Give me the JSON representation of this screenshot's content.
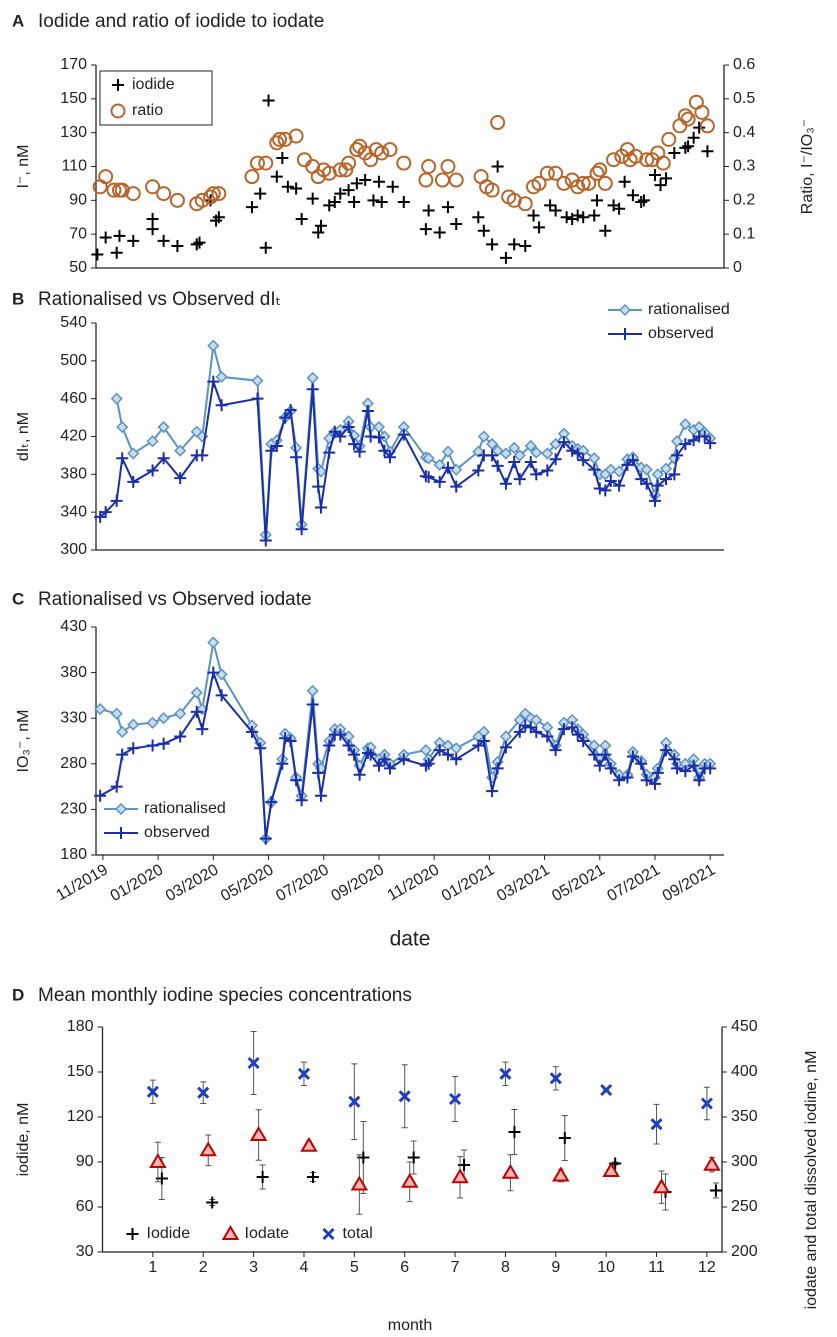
{
  "chart_data": [
    {
      "type": "scatter",
      "panel": "A",
      "title": "Iodide and ratio of iodide to iodate",
      "ylabel": "I⁻, nM",
      "y2label": "Ratio, I⁻/IO₃⁻",
      "xlim": [
        -0.25,
        22.5
      ],
      "ylim": [
        50,
        170
      ],
      "yticks": [
        50,
        70,
        90,
        110,
        130,
        150,
        170
      ],
      "y2lim": [
        0,
        0.6
      ],
      "y2ticks": [
        0,
        0.1,
        0.2,
        0.3,
        0.4,
        0.5,
        0.6
      ],
      "legend": "upper left",
      "series": [
        {
          "name": "iodide",
          "color": "#000000",
          "marker": "plus",
          "x": [
            -0.2,
            0.1,
            0.5,
            0.6,
            1.1,
            1.8,
            1.8,
            2.2,
            2.7,
            3.4,
            3.5,
            3.9,
            4.1,
            4.2,
            5.4,
            5.7,
            5.9,
            6.0,
            6.3,
            6.5,
            6.7,
            7.0,
            7.2,
            7.6,
            7.8,
            7.9,
            8.2,
            8.4,
            8.6,
            8.9,
            9.1,
            9.2,
            9.5,
            9.8,
            10.0,
            10.1,
            10.5,
            10.9,
            11.7,
            11.8,
            12.2,
            12.5,
            12.8,
            13.6,
            13.8,
            14.1,
            14.3,
            14.6,
            14.9,
            15.3,
            15.6,
            15.8,
            16.2,
            16.4,
            16.8,
            17.0,
            17.2,
            17.4,
            17.8,
            17.9,
            18.2,
            18.5,
            18.7,
            18.9,
            19.2,
            19.5,
            19.6,
            20.0,
            20.2,
            20.4,
            20.7,
            21.1,
            21.2,
            21.4,
            21.6,
            21.9
          ],
          "values": [
            58,
            68,
            59,
            69,
            66,
            79,
            73,
            66,
            63,
            64,
            65,
            90,
            78,
            80,
            86,
            94,
            62,
            149,
            104,
            115,
            98,
            97,
            79,
            91,
            71,
            75,
            87,
            89,
            94,
            96,
            89,
            100,
            102,
            90,
            101,
            89,
            98,
            89,
            73,
            84,
            71,
            86,
            76,
            80,
            72,
            64,
            110,
            56,
            64,
            63,
            81,
            74,
            87,
            84,
            80,
            79,
            81,
            80,
            81,
            90,
            72,
            87,
            85,
            101,
            93,
            89,
            90,
            105,
            99,
            103,
            118,
            121,
            122,
            127,
            133,
            119
          ]
        },
        {
          "name": "ratio",
          "color": "#b8642a",
          "marker": "circle",
          "axis": "y2",
          "x": [
            -0.1,
            0.1,
            0.4,
            0.6,
            0.7,
            1.1,
            1.8,
            2.2,
            2.7,
            3.4,
            3.6,
            3.9,
            4.0,
            4.2,
            5.4,
            5.6,
            5.9,
            6.3,
            6.4,
            6.6,
            7.0,
            7.3,
            7.6,
            7.8,
            8.0,
            8.2,
            8.6,
            8.8,
            8.9,
            9.2,
            9.3,
            9.5,
            9.7,
            9.9,
            10.1,
            10.4,
            10.9,
            11.7,
            11.8,
            12.3,
            12.5,
            12.8,
            13.7,
            13.9,
            14.1,
            14.3,
            14.7,
            14.9,
            15.3,
            15.6,
            15.8,
            16.1,
            16.4,
            16.7,
            17.0,
            17.2,
            17.4,
            17.6,
            17.9,
            18.0,
            18.2,
            18.5,
            18.8,
            19.0,
            19.1,
            19.3,
            19.7,
            19.9,
            20.1,
            20.3,
            20.5,
            20.9,
            21.1,
            21.2,
            21.5,
            21.7,
            21.9
          ],
          "values": [
            0.24,
            0.27,
            0.23,
            0.23,
            0.23,
            0.22,
            0.24,
            0.22,
            0.2,
            0.19,
            0.2,
            0.21,
            0.22,
            0.22,
            0.27,
            0.31,
            0.31,
            0.37,
            0.38,
            0.38,
            0.39,
            0.32,
            0.3,
            0.27,
            0.29,
            0.28,
            0.29,
            0.29,
            0.31,
            0.35,
            0.36,
            0.34,
            0.32,
            0.35,
            0.34,
            0.35,
            0.31,
            0.26,
            0.3,
            0.26,
            0.3,
            0.26,
            0.27,
            0.24,
            0.23,
            0.43,
            0.21,
            0.2,
            0.19,
            0.24,
            0.25,
            0.28,
            0.28,
            0.25,
            0.26,
            0.24,
            0.25,
            0.25,
            0.28,
            0.29,
            0.25,
            0.32,
            0.33,
            0.35,
            0.32,
            0.33,
            0.32,
            0.32,
            0.34,
            0.31,
            0.38,
            0.42,
            0.45,
            0.44,
            0.49,
            0.46,
            0.42
          ]
        }
      ]
    },
    {
      "type": "line",
      "panel": "B",
      "title": "Rationalised vs Observed dIₜ",
      "ylabel": "dIₜ, nM",
      "xlim": [
        -0.25,
        22.5
      ],
      "ylim": [
        300,
        540
      ],
      "yticks": [
        300,
        340,
        380,
        420,
        460,
        500,
        540
      ],
      "legend": "upper right",
      "x": [
        -0.1,
        0.1,
        0.5,
        0.7,
        1.1,
        1.8,
        2.2,
        2.8,
        3.4,
        3.6,
        4.0,
        4.3,
        5.6,
        5.9,
        6.1,
        6.3,
        6.6,
        6.8,
        7.0,
        7.2,
        7.6,
        7.8,
        7.9,
        8.2,
        8.4,
        8.6,
        8.9,
        9.1,
        9.3,
        9.6,
        9.7,
        10.0,
        10.2,
        10.4,
        10.9,
        11.7,
        11.8,
        12.2,
        12.5,
        12.8,
        13.6,
        13.8,
        14.1,
        14.3,
        14.6,
        14.9,
        15.1,
        15.5,
        15.7,
        16.1,
        16.4,
        16.7,
        17.0,
        17.2,
        17.4,
        17.8,
        18.0,
        18.2,
        18.4,
        18.7,
        19.0,
        19.2,
        19.5,
        19.7,
        20.0,
        20.1,
        20.4,
        20.7,
        20.8,
        21.1,
        21.4,
        21.6,
        21.8,
        22.0
      ],
      "series": [
        {
          "name": "rationalised",
          "color": "#5b93c2",
          "marker": "diamond",
          "values": [
            null,
            null,
            460,
            430,
            402,
            415,
            430,
            405,
            425,
            420,
            516,
            483,
            479,
            316,
            412,
            416,
            440,
            447,
            408,
            327,
            482,
            386,
            383,
            418,
            425,
            427,
            436,
            421,
            410,
            455,
            430,
            430,
            420,
            404,
            430,
            398,
            397,
            390,
            404,
            385,
            404,
            420,
            412,
            405,
            402,
            408,
            400,
            410,
            403,
            402,
            412,
            423,
            410,
            407,
            405,
            397,
            380,
            380,
            385,
            383,
            396,
            398,
            387,
            385,
            358,
            380,
            386,
            397,
            415,
            433,
            427,
            430,
            424,
            418
          ]
        },
        {
          "name": "observed",
          "color": "#1a2ea8",
          "marker": "plus",
          "values": [
            335,
            340,
            352,
            397,
            372,
            384,
            397,
            376,
            400,
            400,
            478,
            453,
            460,
            310,
            405,
            410,
            440,
            448,
            398,
            322,
            470,
            367,
            345,
            403,
            425,
            420,
            430,
            412,
            404,
            447,
            420,
            419,
            405,
            398,
            422,
            378,
            377,
            372,
            387,
            367,
            384,
            400,
            400,
            389,
            370,
            393,
            375,
            393,
            380,
            384,
            396,
            414,
            405,
            402,
            395,
            385,
            365,
            363,
            373,
            368,
            390,
            395,
            375,
            370,
            352,
            368,
            375,
            380,
            400,
            412,
            416,
            420,
            420,
            413
          ]
        }
      ]
    },
    {
      "type": "line",
      "panel": "C",
      "title": "Rationalised vs Observed iodate",
      "ylabel": "IO₃⁻, nM",
      "xlabel": "date",
      "xlim": [
        -0.25,
        22.5
      ],
      "ylim": [
        180,
        430
      ],
      "yticks": [
        180,
        230,
        280,
        330,
        380,
        430
      ],
      "legend": "lower left",
      "xticks": [
        {
          "value": 0,
          "label": "11/2019"
        },
        {
          "value": 2,
          "label": "01/2020"
        },
        {
          "value": 4,
          "label": "03/2020"
        },
        {
          "value": 6,
          "label": "05/2020"
        },
        {
          "value": 8,
          "label": "07/2020"
        },
        {
          "value": 10,
          "label": "09/2020"
        },
        {
          "value": 12,
          "label": "11/2020"
        },
        {
          "value": 14,
          "label": "01/2021"
        },
        {
          "value": 16,
          "label": "03/2021"
        },
        {
          "value": 18,
          "label": "05/2021"
        },
        {
          "value": 20,
          "label": "07/2021"
        },
        {
          "value": 22,
          "label": "09/2021"
        }
      ],
      "x": [
        -0.1,
        0.5,
        0.7,
        1.1,
        1.8,
        2.2,
        2.8,
        3.4,
        3.6,
        4.0,
        4.3,
        5.4,
        5.7,
        5.9,
        6.1,
        6.5,
        6.6,
        6.8,
        7.0,
        7.2,
        7.6,
        7.8,
        7.9,
        8.2,
        8.4,
        8.6,
        8.9,
        9.1,
        9.3,
        9.6,
        9.7,
        10.0,
        10.2,
        10.4,
        10.9,
        11.7,
        11.8,
        12.2,
        12.5,
        12.8,
        13.6,
        13.8,
        14.1,
        14.3,
        14.6,
        15.1,
        15.3,
        15.5,
        15.7,
        16.1,
        16.4,
        16.7,
        17.0,
        17.2,
        17.4,
        17.8,
        18.0,
        18.2,
        18.4,
        18.7,
        19.0,
        19.2,
        19.5,
        19.7,
        20.0,
        20.1,
        20.4,
        20.7,
        20.8,
        21.1,
        21.4,
        21.6,
        21.8,
        22.0
      ],
      "series": [
        {
          "name": "rationalised",
          "color": "#5b93c2",
          "marker": "diamond",
          "values": [
            340,
            335,
            315,
            323,
            325,
            330,
            335,
            358,
            340,
            413,
            378,
            322,
            303,
            198,
            238,
            285,
            313,
            308,
            265,
            245,
            360,
            280,
            275,
            305,
            318,
            318,
            310,
            295,
            278,
            297,
            298,
            285,
            290,
            280,
            290,
            295,
            285,
            303,
            300,
            297,
            310,
            315,
            265,
            282,
            310,
            328,
            335,
            330,
            328,
            320,
            300,
            325,
            328,
            318,
            312,
            300,
            285,
            300,
            280,
            268,
            268,
            293,
            283,
            268,
            265,
            275,
            303,
            290,
            280,
            280,
            285,
            265,
            280,
            280
          ]
        },
        {
          "name": "observed",
          "color": "#1a2ea8",
          "marker": "plus",
          "values": [
            245,
            255,
            290,
            297,
            300,
            302,
            310,
            337,
            318,
            380,
            355,
            315,
            297,
            198,
            238,
            280,
            308,
            305,
            262,
            240,
            345,
            270,
            245,
            300,
            312,
            312,
            300,
            290,
            268,
            292,
            290,
            278,
            285,
            275,
            285,
            278,
            280,
            295,
            290,
            285,
            300,
            305,
            250,
            275,
            298,
            315,
            322,
            320,
            315,
            310,
            295,
            318,
            320,
            312,
            305,
            290,
            278,
            290,
            275,
            262,
            265,
            288,
            280,
            262,
            258,
            270,
            295,
            285,
            275,
            272,
            278,
            262,
            275,
            275
          ]
        }
      ]
    },
    {
      "type": "scatter",
      "panel": "D",
      "title": "Mean monthly iodine species concentrations",
      "ylabel": "iodide, nM",
      "y2label": "iodate and total dissolved iodine, nM",
      "xlabel": "month",
      "x": [
        1,
        2,
        3,
        4,
        5,
        6,
        7,
        8,
        9,
        10,
        11,
        12
      ],
      "xlim": [
        0,
        12.3
      ],
      "xticks": [
        1,
        2,
        3,
        4,
        5,
        6,
        7,
        8,
        9,
        10,
        11,
        12
      ],
      "ylim": [
        30,
        180
      ],
      "yticks": [
        30,
        60,
        90,
        120,
        150,
        180
      ],
      "y2lim": [
        200,
        450
      ],
      "y2ticks": [
        200,
        250,
        300,
        350,
        400,
        450
      ],
      "legend": "lower left",
      "series": [
        {
          "name": "Iodide",
          "color": "#000000",
          "marker": "plus",
          "values": [
            79,
            63,
            80,
            80,
            93,
            93,
            88,
            110,
            106,
            89,
            70,
            71
          ],
          "errors": [
            14,
            2,
            8,
            3,
            24,
            11,
            10,
            15,
            15,
            1,
            12,
            5
          ]
        },
        {
          "name": "Iodate",
          "color": "#c00000",
          "marker": "triangle",
          "axis": "y2",
          "values": [
            300,
            313,
            330,
            318,
            275,
            278,
            283,
            288,
            285,
            290,
            272,
            297
          ],
          "errors": [
            22,
            17,
            28,
            5,
            33,
            22,
            23,
            20,
            7,
            3,
            18,
            8
          ]
        },
        {
          "name": "total",
          "color": "#1f3fbf",
          "marker": "x",
          "axis": "y2",
          "values": [
            378,
            377,
            410,
            398,
            367,
            373,
            370,
            398,
            393,
            380,
            342,
            365
          ],
          "errors": [
            13,
            12,
            35,
            13,
            42,
            35,
            25,
            13,
            13,
            0,
            22,
            18
          ]
        }
      ]
    }
  ]
}
